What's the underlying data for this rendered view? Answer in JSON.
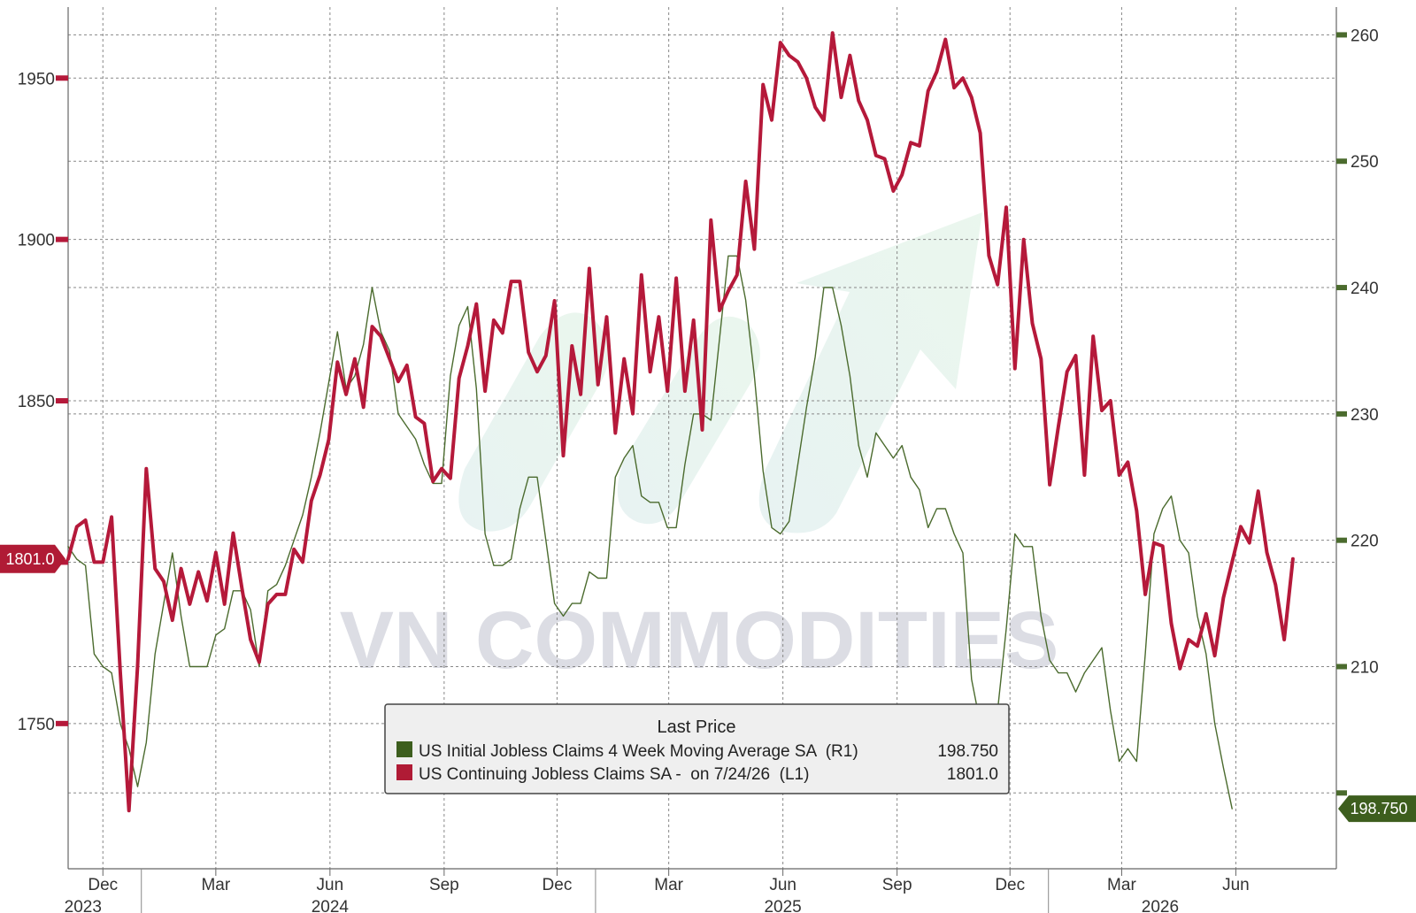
{
  "watermark": "VN COMMODITIES",
  "colors": {
    "continuing": "#b5193a",
    "initial": "#4b6b2e",
    "initial_tag": "#3d5e1e",
    "continuing_tag": "#b01b35",
    "grid": "#888888",
    "legend_bg": "#efefef"
  },
  "legend": {
    "title": "Last Price",
    "items": [
      {
        "label": "US Initial Jobless Claims 4 Week Moving Average SA  (R1)",
        "value": "198.750",
        "color": "#3d5e1e"
      },
      {
        "label": "US Continuing Jobless Claims SA -  on 7/24/26  (L1)",
        "value": "1801.0",
        "color": "#b01b35"
      }
    ]
  },
  "last_labels": {
    "left": "1801.0",
    "right": "198.750"
  },
  "chart_data": {
    "type": "line",
    "x_start": "2023-11-03",
    "x_end": "2026-08-21",
    "x_month_ticks": [
      {
        "label": "Dec",
        "date": "2023-12-01"
      },
      {
        "label": "Mar",
        "date": "2024-03-01"
      },
      {
        "label": "Jun",
        "date": "2024-06-01"
      },
      {
        "label": "Sep",
        "date": "2024-09-01"
      },
      {
        "label": "Dec",
        "date": "2024-12-01"
      },
      {
        "label": "Mar",
        "date": "2025-03-01"
      },
      {
        "label": "Jun",
        "date": "2025-06-01"
      },
      {
        "label": "Sep",
        "date": "2025-09-01"
      },
      {
        "label": "Dec",
        "date": "2025-12-01"
      },
      {
        "label": "Mar",
        "date": "2026-03-01"
      },
      {
        "label": "Jun",
        "date": "2026-06-01"
      }
    ],
    "x_year_ticks": [
      {
        "label": "2023",
        "date": "2023-11-15"
      },
      {
        "label": "2024",
        "date": "2024-06-01"
      },
      {
        "label": "2025",
        "date": "2025-06-01"
      },
      {
        "label": "2026",
        "date": "2026-04-01"
      }
    ],
    "year_dividers": [
      "2024-01-01",
      "2025-01-01",
      "2026-01-01"
    ],
    "left_axis": {
      "ylim": [
        1705,
        1972
      ],
      "ticks": [
        1750,
        1800,
        1850,
        1900,
        1950
      ],
      "label_ticks": [
        1750,
        1850,
        1900,
        1950
      ]
    },
    "right_axis": {
      "ylim": [
        194,
        262.2
      ],
      "ticks": [
        200,
        210,
        220,
        230,
        240,
        250,
        260
      ],
      "label_ticks": [
        210,
        220,
        230,
        240,
        250,
        260
      ]
    },
    "grid": true,
    "series": [
      {
        "name": "US Continuing Jobless Claims SA",
        "axis": "left",
        "start": "2023-11-03",
        "step_days": 7,
        "values": [
          1801,
          1811,
          1813,
          1800,
          1800,
          1814,
          1766,
          1723,
          1768,
          1829,
          1798,
          1794,
          1782,
          1798,
          1787,
          1797,
          1788,
          1803,
          1787,
          1809,
          1792,
          1776,
          1769,
          1787,
          1790,
          1790,
          1804,
          1800,
          1819,
          1827,
          1838,
          1862,
          1852,
          1863,
          1848,
          1873,
          1870,
          1863,
          1856,
          1861,
          1845,
          1843,
          1825,
          1829,
          1826,
          1857,
          1867,
          1880,
          1853,
          1875,
          1871,
          1887,
          1887,
          1865,
          1859,
          1864,
          1881,
          1833,
          1867,
          1852,
          1891,
          1855,
          1876,
          1840,
          1863,
          1846,
          1889,
          1859,
          1876,
          1853,
          1888,
          1853,
          1875,
          1841,
          1906,
          1878,
          1884,
          1889,
          1918,
          1897,
          1948,
          1937,
          1961,
          1957,
          1955,
          1950,
          1941,
          1937,
          1964,
          1944,
          1957,
          1943,
          1937,
          1926,
          1925,
          1915,
          1920,
          1930,
          1929,
          1946,
          1952,
          1962,
          1947,
          1950,
          1944,
          1933,
          1895,
          1886,
          1910,
          1860,
          1900,
          1874,
          1863,
          1824,
          1842,
          1859,
          1864,
          1827,
          1870,
          1847,
          1850,
          1827,
          1831,
          1816,
          1790,
          1806,
          1805,
          1781,
          1767,
          1776,
          1774,
          1784,
          1771,
          1789,
          1800,
          1811,
          1806,
          1822,
          1803,
          1793,
          1776,
          1801
        ]
      },
      {
        "name": "US Initial Jobless Claims 4 Week Moving Average SA",
        "axis": "right",
        "start": "2023-11-03",
        "step_days": 7,
        "values": [
          219.5,
          218.5,
          218.0,
          211.0,
          210.0,
          209.5,
          205.5,
          203.5,
          200.5,
          204.0,
          211.0,
          215.0,
          219.0,
          214.0,
          210.0,
          210.0,
          210.0,
          212.5,
          213.0,
          216.0,
          216.0,
          214.5,
          210.0,
          216.0,
          216.5,
          218.0,
          220.0,
          222.0,
          225.0,
          228.5,
          232.5,
          236.5,
          232.0,
          233.0,
          235.5,
          240.0,
          236.5,
          235.0,
          230.0,
          229.0,
          228.0,
          226.0,
          224.5,
          224.5,
          233.0,
          237.0,
          238.5,
          232.0,
          220.5,
          218.0,
          218.0,
          218.5,
          222.5,
          225.0,
          225.0,
          220.0,
          215.0,
          214.0,
          215.0,
          215.0,
          217.5,
          217.0,
          217.0,
          225.0,
          226.5,
          227.5,
          223.5,
          223.0,
          223.0,
          221.0,
          221.0,
          226.0,
          230.0,
          230.0,
          229.5,
          236.0,
          242.5,
          242.5,
          239.0,
          233.0,
          225.5,
          221.0,
          220.5,
          221.5,
          226.0,
          230.5,
          234.5,
          240.0,
          240.0,
          237.0,
          233.0,
          227.5,
          225.0,
          228.5,
          227.5,
          226.5,
          227.5,
          225.0,
          224.0,
          221.0,
          222.5,
          222.5,
          220.5,
          219.0,
          209.0,
          205.5,
          204.5,
          206.5,
          213.0,
          220.5,
          219.5,
          219.5,
          214.0,
          210.5,
          209.5,
          209.5,
          208.0,
          209.5,
          210.5,
          211.5,
          206.5,
          202.5,
          203.5,
          202.5,
          211.0,
          220.5,
          222.5,
          223.5,
          220.0,
          219.0,
          214.0,
          211.0,
          205.5,
          202.0,
          198.75
        ]
      }
    ]
  }
}
